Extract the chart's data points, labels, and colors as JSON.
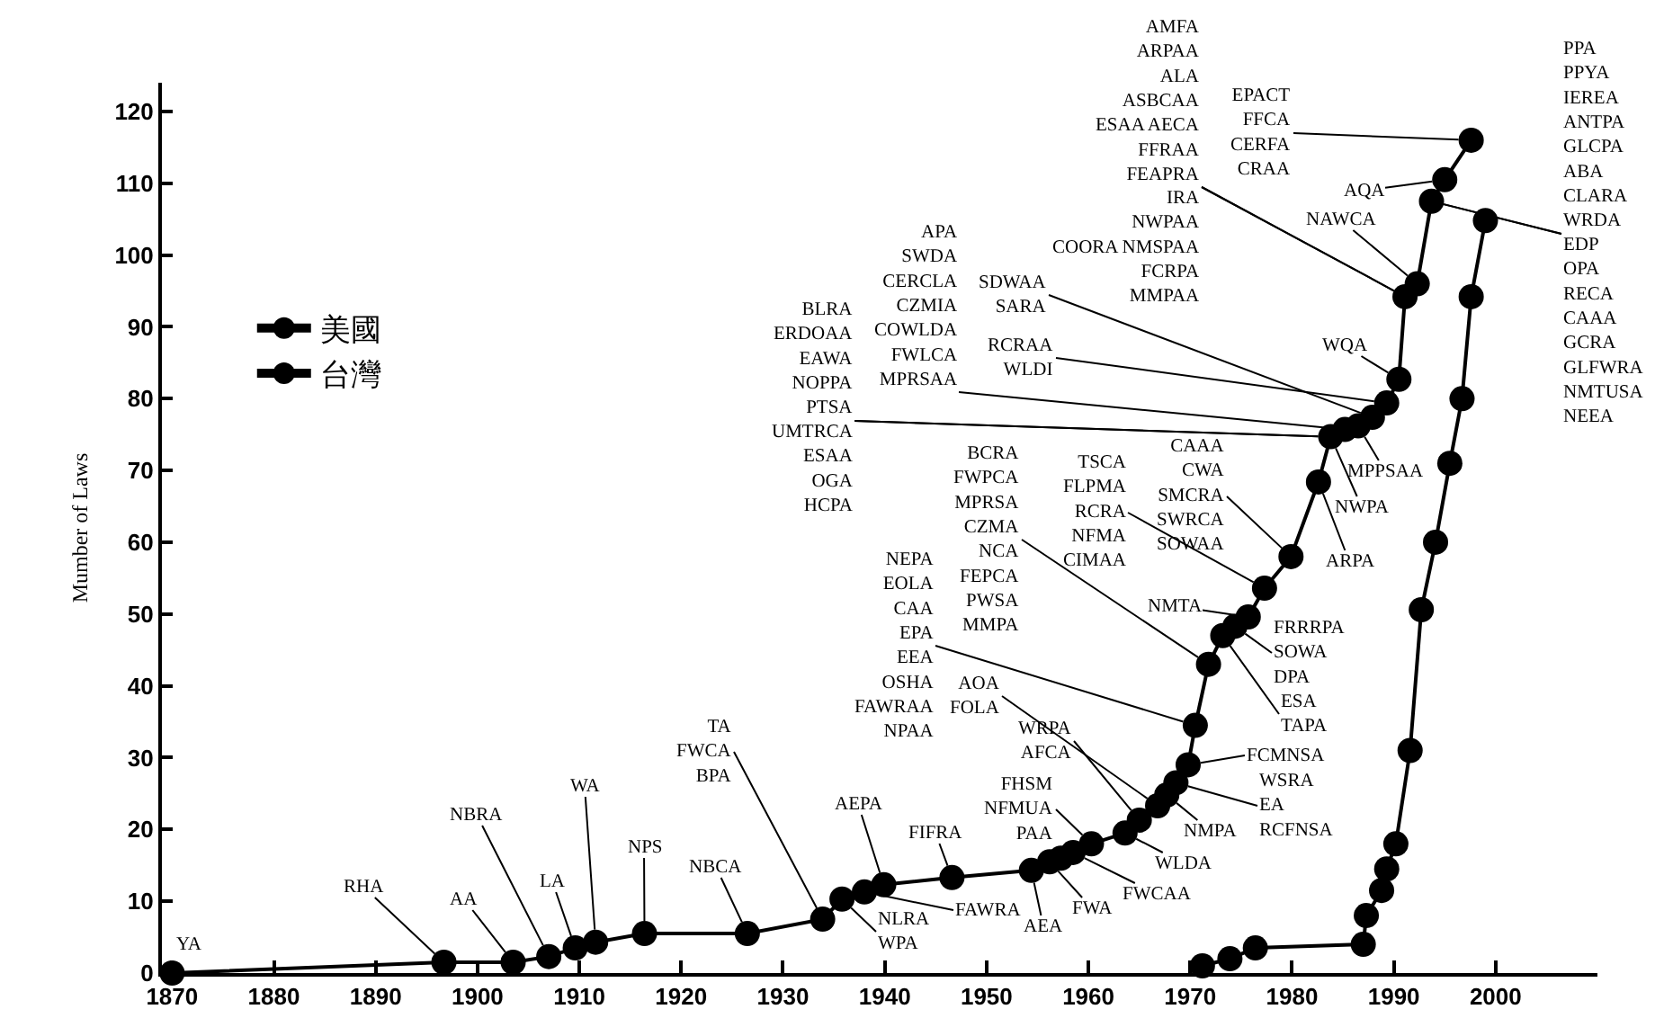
{
  "chart_data": {
    "type": "line",
    "ylabel": "Mumber of Laws",
    "marker": "circle",
    "legend": "top left",
    "xlim": [
      1869,
      2010
    ],
    "xticks": [
      1870,
      1880,
      1890,
      1900,
      1910,
      1920,
      1930,
      1940,
      1950,
      1960,
      1970,
      1980,
      1990,
      2000
    ],
    "ylim": [
      0,
      124
    ],
    "yticks": [
      0,
      10,
      20,
      30,
      40,
      50,
      60,
      70,
      80,
      90,
      100,
      110,
      120
    ],
    "series": [
      {
        "name": "美國",
        "color": "#000000",
        "x": [
          1870,
          1896.7,
          1903.5,
          1907,
          1909.6,
          1911.6,
          1916.4,
          1926.5,
          1933.9,
          1935.8,
          1938,
          1939.9,
          1946.6,
          1954.4,
          1956.2,
          1957.3,
          1958.5,
          1960.3,
          1963.6,
          1965,
          1966.8,
          1967.7,
          1968.6,
          1969.8,
          1970.5,
          1971.8,
          1973.2,
          1974.4,
          1975.7,
          1977.3,
          1979.9,
          1982.6,
          1983.8,
          1985.2,
          1986.5,
          1987.9,
          1989.3,
          1990.5,
          1991.1,
          1992.3,
          1993.7,
          1995,
          1997.6
        ],
        "values": [
          0,
          1.5,
          1.5,
          2.3,
          3.5,
          4.3,
          5.5,
          5.5,
          7.5,
          10.3,
          11.3,
          12.3,
          13.3,
          14.3,
          15.5,
          16,
          16.8,
          18,
          19.5,
          21.3,
          23.3,
          24.8,
          26.5,
          29,
          34.5,
          43,
          47,
          48.3,
          49.6,
          53.6,
          58,
          68.4,
          74.7,
          75.7,
          76.2,
          77.4,
          79.4,
          82.7,
          94.2,
          96,
          107.5,
          110.5,
          116
        ]
      },
      {
        "name": "台灣",
        "color": "#000000",
        "x": [
          1971.2,
          1973.9,
          1976.4,
          1987,
          1987.3,
          1988.8,
          1989.3,
          1990.2,
          1991.6,
          1992.7,
          1994.1,
          1995.5,
          1996.7,
          1997.6,
          1999
        ],
        "values": [
          1,
          2,
          3.5,
          4,
          8,
          11.5,
          14.5,
          18,
          31,
          50.6,
          60,
          71,
          80,
          94.2,
          104.8
        ]
      }
    ],
    "annotations": [
      {
        "text": "YA",
        "x": 1870,
        "y": 0
      },
      {
        "text": "RHA",
        "x": 1896.7,
        "y": 1.5
      },
      {
        "text": "AA",
        "x": 1903.5,
        "y": 1.5
      },
      {
        "text": "NBRA",
        "x": 1907,
        "y": 2.3
      },
      {
        "text": "LA",
        "x": 1909.6,
        "y": 3.5
      },
      {
        "text": "WA",
        "x": 1911.6,
        "y": 4.3
      },
      {
        "text": "NPS",
        "x": 1916.4,
        "y": 5.5
      },
      {
        "text": "NBCA",
        "x": 1926.5,
        "y": 5.5
      },
      {
        "text": "TA\nFWCA\nBPA",
        "x": 1933.9,
        "y": 7.5
      },
      {
        "text": "NLRA\nWPA",
        "x": 1935.8,
        "y": 10.3
      },
      {
        "text": "FAWRA",
        "x": 1938,
        "y": 11.3
      },
      {
        "text": "AEPA",
        "x": 1939.9,
        "y": 12.3
      },
      {
        "text": "FIFRA",
        "x": 1946.6,
        "y": 13.3
      },
      {
        "text": "AEA",
        "x": 1954.4,
        "y": 14.3
      },
      {
        "text": "FWA",
        "x": 1956.2,
        "y": 15.5
      },
      {
        "text": "FWCAA",
        "x": 1958.5,
        "y": 16.8
      },
      {
        "text": "FHSM\nNFMUA\nPAA",
        "x": 1960.3,
        "y": 18
      },
      {
        "text": "WLDA",
        "x": 1963.6,
        "y": 19.5
      },
      {
        "text": "WRPA\nAFCA",
        "x": 1965,
        "y": 21.3
      },
      {
        "text": "AOA\nFOLA",
        "x": 1966.8,
        "y": 23.3
      },
      {
        "text": "NMPA",
        "x": 1967.7,
        "y": 24.8
      },
      {
        "text": "WSRA\nEA\nRCFNSA",
        "x": 1968.6,
        "y": 26.5
      },
      {
        "text": "FCMNSA",
        "x": 1969.8,
        "y": 29
      },
      {
        "text": "NEPA\nEOLA\nCAA\nEPA\nEEA\nOSHA\nFAWRAA\nNPAA",
        "x": 1970.5,
        "y": 34.5
      },
      {
        "text": "BCRA\nFWPCA\nMPRSA\nCZMA\nNCA\nFEPCA\nPWSA\nMMPA",
        "x": 1971.8,
        "y": 43
      },
      {
        "text": "ESA\nTAPA",
        "x": 1973.2,
        "y": 47
      },
      {
        "text": "FRRRPA\nSOWA\nDPA",
        "x": 1974.4,
        "y": 48.3
      },
      {
        "text": "NMTA",
        "x": 1975.7,
        "y": 49.6
      },
      {
        "text": "TSCA\nFLPMA\nRCRA\nNFMA\nCIMAA",
        "x": 1977.3,
        "y": 53.6
      },
      {
        "text": "CAAA\nCWA\nSMCRA\nSWRCA\nSOWAA",
        "x": 1979.9,
        "y": 58
      },
      {
        "text": "ARPA",
        "x": 1982.6,
        "y": 68.4
      },
      {
        "text": "NWPA",
        "x": 1983.8,
        "y": 74.7
      },
      {
        "text": "BLRA\nERDOAA\nEAWA\nNOPPA\nPTSA",
        "x": 1983.8,
        "y": 74.7
      },
      {
        "text": "UMTRCA\nESAA\nOGA\nHCPA",
        "x": 1983.8,
        "y": 74.7
      },
      {
        "text": "APA\nSWDA\nCERCLA\nCZMIA\nCOWLDA\nFWLCA\nMPRSAA",
        "x": 1985.2,
        "y": 75.7
      },
      {
        "text": "MPPSAA",
        "x": 1986.5,
        "y": 76.2
      },
      {
        "text": "SDWAA\nSARA",
        "x": 1987.9,
        "y": 77.4
      },
      {
        "text": "RCRAA\nWLDI",
        "x": 1989.3,
        "y": 79.4
      },
      {
        "text": "WQA",
        "x": 1990.5,
        "y": 82.7
      },
      {
        "text": "AMFA\nARPAA\nALA\nASBCAA\nESAA AECA\nFFRAA\nFEAPRA",
        "x": 1991.1,
        "y": 94.2
      },
      {
        "text": "IRA\nNWPAA\nCOORA NMSPAA\nFCRPA\nMMPAA",
        "x": 1991.1,
        "y": 94.2
      },
      {
        "text": "NAWCA",
        "x": 1992.3,
        "y": 96
      },
      {
        "text": "PPA\nPPYA\nIEREA\nANTPA\nGLCPA\nABA\nCLARA\nWRDA",
        "x": 1993.7,
        "y": 107.5
      },
      {
        "text": "EDP\nOPA\nRECA\nCAAA\nGCRA\nGLFWRA\nNMTUSA\nNEEA",
        "x": 1993.7,
        "y": 107.5
      },
      {
        "text": "AQA",
        "x": 1995,
        "y": 110.5
      },
      {
        "text": "EPACT\nFFCA\nCERFA\nCRAA",
        "x": 1997.6,
        "y": 116
      }
    ]
  }
}
